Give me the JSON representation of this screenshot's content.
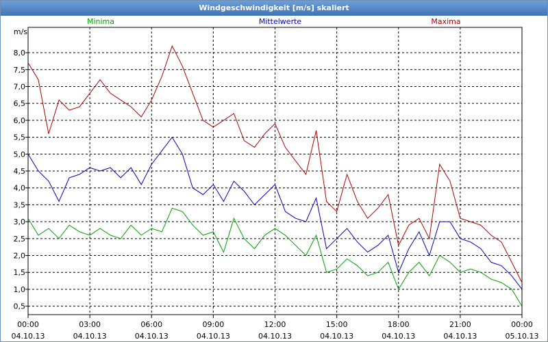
{
  "window": {
    "title": "Windgeschwindigkeit [m/s] skaliert"
  },
  "chart_data": {
    "type": "line",
    "title": "Windgeschwindigkeit [m/s] skaliert",
    "ylabel": "m/s",
    "xlabel": "",
    "ylim": [
      0.25,
      8.75
    ],
    "xlim": [
      0,
      24
    ],
    "grid": true,
    "legend_placement": "top",
    "y_ticks": [
      "0,5",
      "1,0",
      "1,5",
      "2,0",
      "2,5",
      "3,0",
      "3,5",
      "4,0",
      "4,5",
      "5,0",
      "5,5",
      "6,0",
      "6,5",
      "7,0",
      "7,5",
      "8,0"
    ],
    "x_ticks": [
      {
        "time": "00:00",
        "date": "04.10.13"
      },
      {
        "time": "03:00",
        "date": "04.10.13"
      },
      {
        "time": "06:00",
        "date": "04.10.13"
      },
      {
        "time": "09:00",
        "date": "04.10.13"
      },
      {
        "time": "12:00",
        "date": "04.10.13"
      },
      {
        "time": "15:00",
        "date": "04.10.13"
      },
      {
        "time": "18:00",
        "date": "04.10.13"
      },
      {
        "time": "21:00",
        "date": "04.10.13"
      },
      {
        "time": "00:00",
        "date": "05.10.13"
      }
    ],
    "x_hours": [
      0,
      0.5,
      1,
      1.5,
      2,
      2.5,
      3,
      3.5,
      4,
      4.5,
      5,
      5.5,
      6,
      6.5,
      7,
      7.5,
      8,
      8.5,
      9,
      9.5,
      10,
      10.5,
      11,
      11.5,
      12,
      12.5,
      13,
      13.5,
      14,
      14.5,
      15,
      15.5,
      16,
      16.5,
      17,
      17.5,
      18,
      18.5,
      19,
      19.5,
      20,
      20.5,
      21,
      21.5,
      22,
      22.5,
      23,
      23.5,
      24
    ],
    "series": [
      {
        "name": "Minima",
        "color": "#00a000",
        "values": [
          3.1,
          2.6,
          2.8,
          2.5,
          2.9,
          2.7,
          2.6,
          2.8,
          2.6,
          2.5,
          2.9,
          2.6,
          2.8,
          2.7,
          3.4,
          3.3,
          2.9,
          2.6,
          2.7,
          2.1,
          3.1,
          2.5,
          2.2,
          2.6,
          2.8,
          2.6,
          2.3,
          2.0,
          2.6,
          1.5,
          1.6,
          1.9,
          1.7,
          1.4,
          1.5,
          1.8,
          1.0,
          1.5,
          1.8,
          1.4,
          2.0,
          1.8,
          1.5,
          1.6,
          1.5,
          1.3,
          1.2,
          1.0,
          0.5
        ]
      },
      {
        "name": "Mittelwerte",
        "color": "#0000c0",
        "values": [
          5.0,
          4.5,
          4.2,
          3.6,
          4.3,
          4.4,
          4.6,
          4.5,
          4.6,
          4.3,
          4.6,
          4.1,
          4.7,
          5.1,
          5.5,
          5.0,
          4.0,
          3.8,
          4.1,
          3.6,
          4.2,
          3.9,
          3.5,
          3.8,
          4.1,
          3.3,
          3.1,
          3.0,
          3.7,
          2.2,
          2.5,
          2.8,
          2.4,
          2.1,
          2.3,
          2.6,
          1.5,
          2.2,
          2.7,
          2.0,
          3.0,
          3.0,
          2.5,
          2.4,
          2.2,
          1.8,
          1.7,
          1.4,
          1.0
        ]
      },
      {
        "name": "Maxima",
        "color": "#b00000",
        "values": [
          7.7,
          7.2,
          5.6,
          6.6,
          6.3,
          6.4,
          6.8,
          7.2,
          6.8,
          6.6,
          6.4,
          6.1,
          6.6,
          7.3,
          8.2,
          7.6,
          6.8,
          6.0,
          5.8,
          6.0,
          6.2,
          5.4,
          5.2,
          5.6,
          5.9,
          5.2,
          4.8,
          4.4,
          5.7,
          3.6,
          3.3,
          4.4,
          3.6,
          3.1,
          3.4,
          3.8,
          2.3,
          2.9,
          3.1,
          2.5,
          4.7,
          4.2,
          3.1,
          3.0,
          2.9,
          2.6,
          2.4,
          1.8,
          1.2
        ]
      }
    ]
  }
}
